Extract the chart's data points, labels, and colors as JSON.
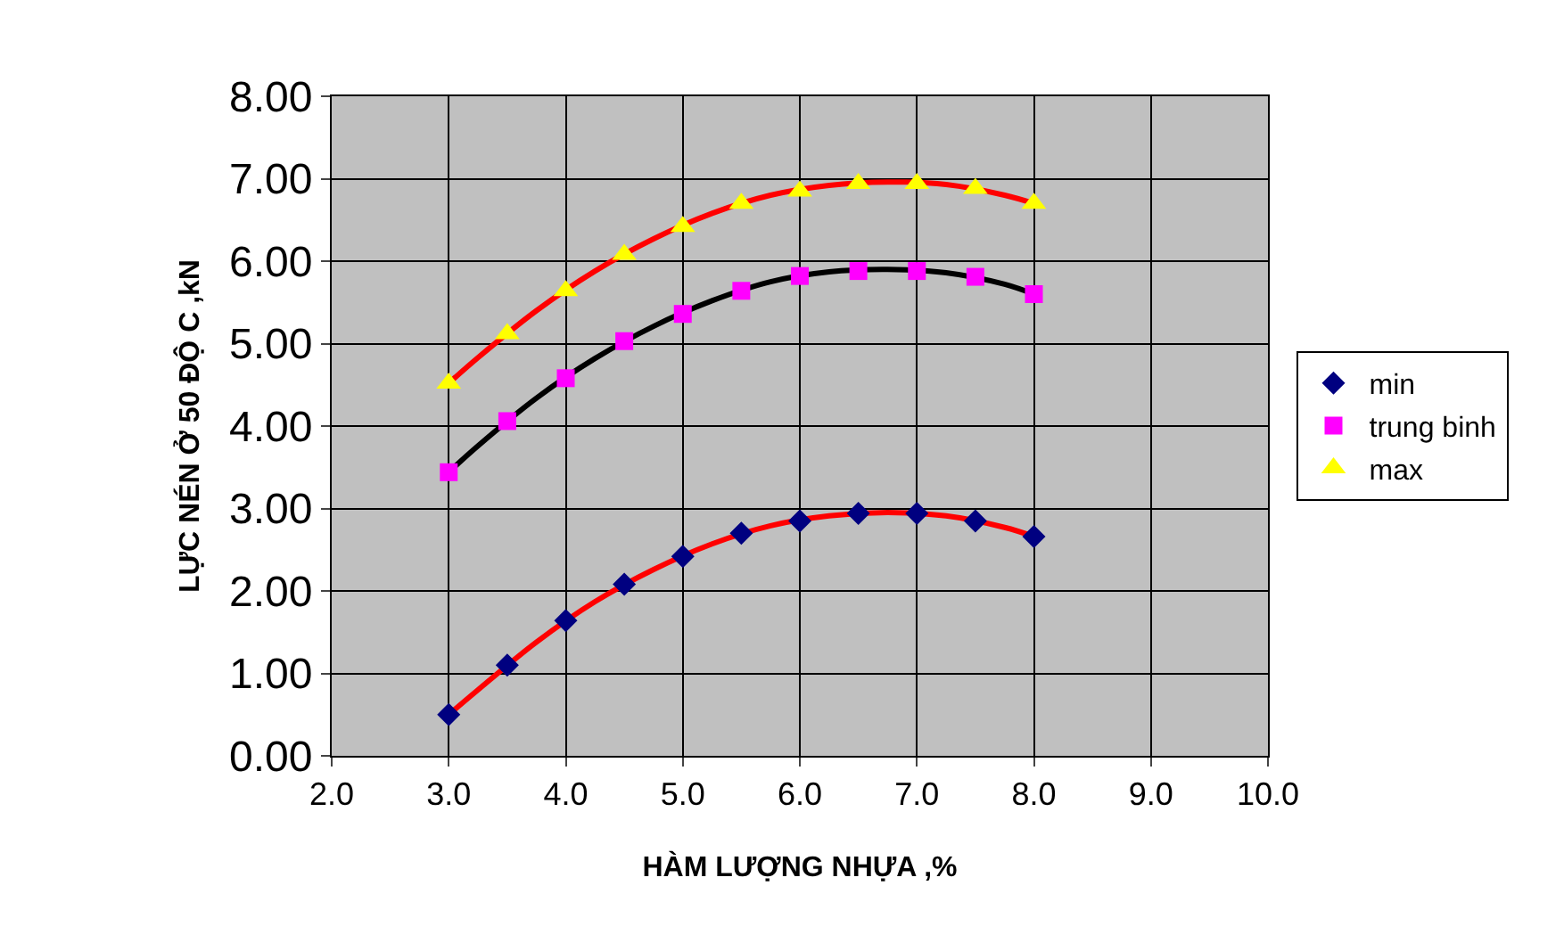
{
  "chart_data": {
    "type": "scatter",
    "xlabel": "HÀM LƯỢNG NHỰA ,%",
    "ylabel": "LỰC NÉN Ở 50 ĐỘ C ,kN",
    "x": [
      3.0,
      3.5,
      4.0,
      4.5,
      5.0,
      5.5,
      6.0,
      6.5,
      7.0,
      7.5,
      8.0
    ],
    "series": [
      {
        "name": "min",
        "color": "#000080",
        "marker": "diamond",
        "values": [
          0.5,
          1.1,
          1.64,
          2.08,
          2.42,
          2.7,
          2.85,
          2.94,
          2.94,
          2.85,
          2.66
        ]
      },
      {
        "name": "trung binh",
        "color": "#ff00ff",
        "marker": "square",
        "values": [
          3.44,
          4.06,
          4.58,
          5.03,
          5.36,
          5.64,
          5.82,
          5.88,
          5.88,
          5.81,
          5.6
        ]
      },
      {
        "name": "max",
        "color": "#ffff00",
        "marker": "triangle",
        "values": [
          4.52,
          5.12,
          5.64,
          6.08,
          6.42,
          6.7,
          6.85,
          6.94,
          6.94,
          6.88,
          6.7
        ]
      },
      {
        "type": "line",
        "color": "#ff0000",
        "marker": "none",
        "x": [
          3.0,
          3.25,
          3.75,
          4.25,
          4.75,
          5.25,
          5.75,
          6.25,
          6.75,
          7.25,
          7.75,
          8.0
        ],
        "values": [
          0.5,
          0.8,
          1.38,
          1.87,
          2.26,
          2.57,
          2.79,
          2.91,
          2.95,
          2.91,
          2.77,
          2.66
        ]
      },
      {
        "type": "line",
        "color": "#000000",
        "marker": "none",
        "x": [
          3.0,
          3.25,
          3.75,
          4.25,
          4.75,
          5.25,
          5.75,
          6.25,
          6.75,
          7.25,
          7.75,
          8.0
        ],
        "values": [
          3.44,
          3.76,
          4.34,
          4.82,
          5.21,
          5.52,
          5.75,
          5.87,
          5.9,
          5.86,
          5.72,
          5.6
        ]
      },
      {
        "type": "line",
        "color": "#ff0000",
        "marker": "none",
        "x": [
          3.0,
          3.25,
          3.75,
          4.25,
          4.75,
          5.25,
          5.75,
          6.25,
          6.75,
          7.25,
          7.75,
          8.0
        ],
        "values": [
          4.52,
          4.83,
          5.4,
          5.88,
          6.27,
          6.58,
          6.8,
          6.92,
          6.96,
          6.93,
          6.8,
          6.7
        ]
      }
    ],
    "xlim": [
      2,
      10
    ],
    "xticks": [
      {
        "value": 2,
        "label": "2.0"
      },
      {
        "value": 3,
        "label": "3.0"
      },
      {
        "value": 4,
        "label": "4.0"
      },
      {
        "value": 5,
        "label": "5.0"
      },
      {
        "value": 6,
        "label": "6.0"
      },
      {
        "value": 7,
        "label": "7.0"
      },
      {
        "value": 8,
        "label": "8.0"
      },
      {
        "value": 9,
        "label": "9.0"
      },
      {
        "value": 10,
        "label": "10.0"
      }
    ],
    "ylim": [
      0,
      8
    ],
    "yticks": [
      {
        "value": 0,
        "label": "0.00"
      },
      {
        "value": 1,
        "label": "1.00"
      },
      {
        "value": 2,
        "label": "2.00"
      },
      {
        "value": 3,
        "label": "3.00"
      },
      {
        "value": 4,
        "label": "4.00"
      },
      {
        "value": 5,
        "label": "5.00"
      },
      {
        "value": 6,
        "label": "6.00"
      },
      {
        "value": 7,
        "label": "7.00"
      },
      {
        "value": 8,
        "label": "8.00"
      }
    ],
    "grid": true,
    "legend": "right"
  }
}
